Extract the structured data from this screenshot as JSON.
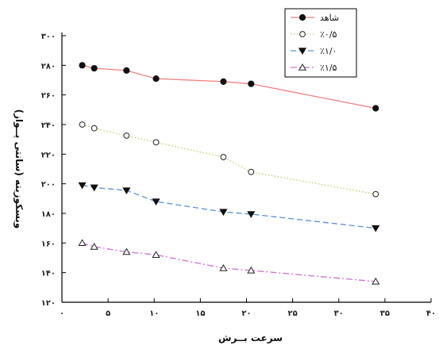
{
  "chart_data": {
    "type": "line",
    "title": "",
    "xlabel": "سرعت بــرش",
    "ylabel": "ویسکوزیته (سانتی پــواز)",
    "xlim": [
      0,
      40
    ],
    "ylim": [
      120,
      300
    ],
    "x_ticks": [
      0,
      5,
      10,
      15,
      20,
      25,
      30,
      35,
      40
    ],
    "x_tick_labels": [
      "۰",
      "۵",
      "۱۰",
      "۱۵",
      "۲۰",
      "۲۵",
      "۳۰",
      "۳۵",
      "۴۰"
    ],
    "y_ticks": [
      120,
      140,
      160,
      180,
      200,
      220,
      240,
      260,
      280,
      300
    ],
    "y_tick_labels": [
      "۱۲۰",
      "۱۴۰",
      "۱۶۰",
      "۱۸۰",
      "۲۰۰",
      "۲۲۰",
      "۲۴۰",
      "۲۶۰",
      "۲۸۰",
      "۳۰۰"
    ],
    "grid": false,
    "legend_position": "top-right",
    "series": [
      {
        "name": "شاهد",
        "color": "#f08080",
        "marker": "filled-circle",
        "line_style": "solid",
        "x": [
          2.2,
          3.5,
          7,
          10.2,
          17.5,
          20.5,
          34
        ],
        "y": [
          280,
          278,
          276.5,
          271,
          269,
          267.5,
          251
        ]
      },
      {
        "name": "٪۰/۵",
        "color": "#c8c870",
        "marker": "open-circle",
        "line_style": "dotted",
        "x": [
          2.2,
          3.5,
          7,
          10.2,
          17.5,
          20.5,
          34
        ],
        "y": [
          240,
          237.5,
          232.5,
          228,
          218,
          208,
          193
        ]
      },
      {
        "name": "٪۱/۰",
        "color": "#5b8fd6",
        "marker": "filled-triangle-down",
        "line_style": "dashed",
        "x": [
          2.2,
          3.5,
          7,
          10.2,
          17.5,
          20.5,
          34
        ],
        "y": [
          199,
          197.5,
          195.5,
          188,
          181,
          179.5,
          170
        ]
      },
      {
        "name": "٪۱/۵",
        "color": "#d070d0",
        "marker": "open-triangle-up",
        "line_style": "dashdot",
        "x": [
          2.2,
          3.5,
          7,
          10.2,
          17.5,
          20.5,
          34
        ],
        "y": [
          160,
          157.5,
          154,
          152,
          143,
          141.5,
          134
        ]
      }
    ]
  }
}
